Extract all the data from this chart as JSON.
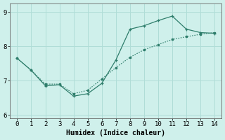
{
  "line_solid_x": [
    0,
    1,
    2,
    3,
    4,
    5,
    6,
    7,
    8,
    9,
    10,
    11,
    12,
    13,
    14
  ],
  "line_solid_y": [
    7.65,
    7.3,
    6.85,
    6.88,
    6.55,
    6.62,
    6.92,
    7.6,
    8.5,
    8.6,
    8.75,
    8.88,
    8.5,
    8.4,
    8.38
  ],
  "line_dot_x": [
    0,
    1,
    2,
    3,
    4,
    5,
    6,
    7,
    8,
    9,
    10,
    11,
    12,
    13,
    14
  ],
  "line_dot_y": [
    7.65,
    7.3,
    6.9,
    6.9,
    6.62,
    6.72,
    7.05,
    7.38,
    7.68,
    7.9,
    8.05,
    8.2,
    8.28,
    8.35,
    8.4
  ],
  "color": "#2e7d6b",
  "xlabel": "Humidex (Indice chaleur)",
  "ylim": [
    5.9,
    9.25
  ],
  "xlim": [
    -0.5,
    14.5
  ],
  "yticks": [
    6,
    7,
    8,
    9
  ],
  "xticks": [
    0,
    1,
    2,
    3,
    4,
    5,
    6,
    7,
    8,
    9,
    10,
    11,
    12,
    13,
    14
  ],
  "bg_color": "#cff0eb",
  "grid_color": "#b0ddd7"
}
